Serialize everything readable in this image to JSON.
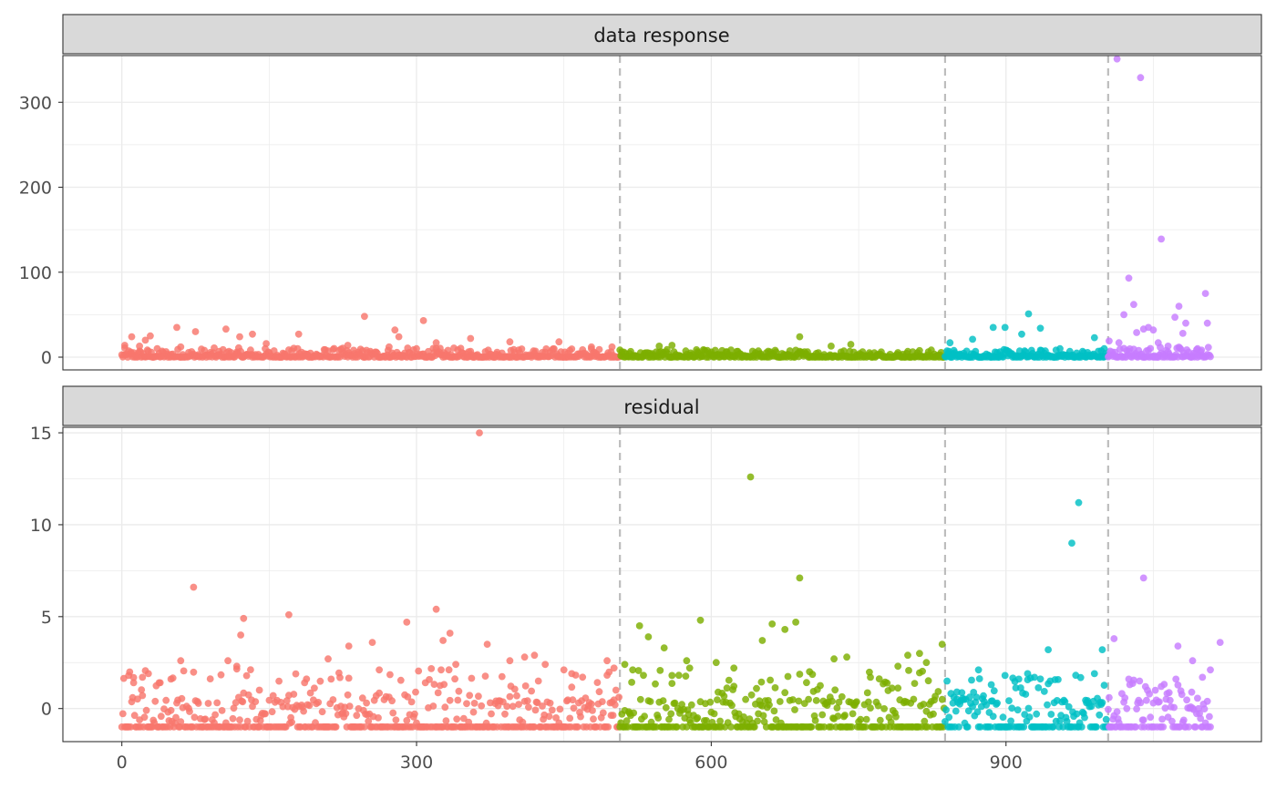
{
  "chart_data": {
    "type": "scatter",
    "facet_layout": "stacked-vertical",
    "colors": {
      "group1": "#F8766D",
      "group2": "#7CAE00",
      "group3": "#00BFC4",
      "group4": "#C77CFF",
      "boundary": "#bdbdbd",
      "strip_fill": "#d9d9d9",
      "panel_border": "#333333",
      "grid": "#ebebeb"
    },
    "grid": true,
    "legend": "none",
    "group_boundaries": [
      507,
      838,
      1004
    ],
    "x_range": [
      -60,
      1160
    ],
    "x_ticks": [
      0,
      300,
      600,
      900
    ],
    "x_tick_labels": [
      "0",
      "300",
      "600",
      "900"
    ],
    "panels": [
      {
        "strip_label": "data response",
        "y_range": [
          -15,
          355
        ],
        "y_ticks": [
          0,
          100,
          200,
          300
        ],
        "y_tick_labels": [
          "0",
          "100",
          "200",
          "300"
        ],
        "generated_baseline": {
          "model": "skewed-counts",
          "max_by_group": [
            11,
            9,
            9,
            13
          ]
        },
        "outliers": [
          [
            3,
            14
          ],
          [
            10,
            24
          ],
          [
            18,
            13
          ],
          [
            24,
            20
          ],
          [
            29,
            25
          ],
          [
            56,
            35
          ],
          [
            60,
            12
          ],
          [
            75,
            30
          ],
          [
            106,
            33
          ],
          [
            120,
            24
          ],
          [
            133,
            27
          ],
          [
            147,
            16
          ],
          [
            180,
            27
          ],
          [
            230,
            14
          ],
          [
            247,
            48
          ],
          [
            272,
            12
          ],
          [
            278,
            32
          ],
          [
            282,
            24
          ],
          [
            307,
            43
          ],
          [
            320,
            17
          ],
          [
            355,
            22
          ],
          [
            395,
            18
          ],
          [
            445,
            18
          ],
          [
            478,
            12
          ],
          [
            499,
            12
          ],
          [
            547,
            13
          ],
          [
            560,
            14
          ],
          [
            690,
            24
          ],
          [
            722,
            13
          ],
          [
            742,
            15
          ],
          [
            843,
            17
          ],
          [
            866,
            21
          ],
          [
            887,
            35
          ],
          [
            899,
            35
          ],
          [
            916,
            27
          ],
          [
            923,
            51
          ],
          [
            935,
            34
          ],
          [
            955,
            10
          ],
          [
            990,
            23
          ],
          [
            1000,
            10
          ],
          [
            1005,
            19
          ],
          [
            1013,
            351
          ],
          [
            1015,
            17
          ],
          [
            1020,
            50
          ],
          [
            1025,
            93
          ],
          [
            1030,
            62
          ],
          [
            1033,
            29
          ],
          [
            1037,
            329
          ],
          [
            1040,
            33
          ],
          [
            1045,
            35
          ],
          [
            1050,
            32
          ],
          [
            1055,
            17
          ],
          [
            1058,
            139
          ],
          [
            1065,
            13
          ],
          [
            1072,
            47
          ],
          [
            1076,
            60
          ],
          [
            1080,
            28
          ],
          [
            1083,
            40
          ],
          [
            1095,
            10
          ],
          [
            1103,
            75
          ],
          [
            1105,
            40
          ]
        ]
      },
      {
        "strip_label": "residual",
        "y_range": [
          -1.8,
          15.3
        ],
        "y_ticks": [
          0,
          5,
          10,
          15
        ],
        "y_tick_labels": [
          "0",
          "5",
          "10",
          "15"
        ],
        "generated_baseline": {
          "model": "residual-spread",
          "floor": -1,
          "max_by_group": [
            1.9,
            1.8,
            1.6,
            1.3
          ]
        },
        "outliers": [
          [
            7,
            1.8
          ],
          [
            12,
            1.4
          ],
          [
            21,
            1.7
          ],
          [
            27,
            1.9
          ],
          [
            38,
            1.4
          ],
          [
            50,
            1.6
          ],
          [
            60,
            2.6
          ],
          [
            73,
            6.6
          ],
          [
            108,
            2.6
          ],
          [
            117,
            2.3
          ],
          [
            121,
            4.0
          ],
          [
            124,
            4.9
          ],
          [
            140,
            1.0
          ],
          [
            170,
            5.1
          ],
          [
            186,
            1.4
          ],
          [
            210,
            2.7
          ],
          [
            231,
            3.4
          ],
          [
            255,
            3.6
          ],
          [
            262,
            2.1
          ],
          [
            290,
            4.7
          ],
          [
            320,
            5.4
          ],
          [
            325,
            2.1
          ],
          [
            327,
            3.7
          ],
          [
            334,
            4.1
          ],
          [
            340,
            2.4
          ],
          [
            364,
            15.0
          ],
          [
            372,
            3.5
          ],
          [
            395,
            2.6
          ],
          [
            410,
            2.8
          ],
          [
            420,
            2.9
          ],
          [
            431,
            2.4
          ],
          [
            450,
            2.1
          ],
          [
            458,
            1.9
          ],
          [
            494,
            2.6
          ],
          [
            501,
            2.2
          ],
          [
            512,
            2.4
          ],
          [
            520,
            2.1
          ],
          [
            527,
            4.5
          ],
          [
            536,
            3.9
          ],
          [
            552,
            3.3
          ],
          [
            560,
            1.8
          ],
          [
            575,
            2.6
          ],
          [
            578,
            2.2
          ],
          [
            589,
            4.8
          ],
          [
            605,
            2.5
          ],
          [
            623,
            2.2
          ],
          [
            640,
            12.6
          ],
          [
            652,
            3.7
          ],
          [
            662,
            4.6
          ],
          [
            675,
            4.3
          ],
          [
            686,
            4.7
          ],
          [
            690,
            7.1
          ],
          [
            700,
            2.0
          ],
          [
            725,
            2.7
          ],
          [
            738,
            2.8
          ],
          [
            762,
            1.7
          ],
          [
            790,
            2.3
          ],
          [
            800,
            2.9
          ],
          [
            812,
            3.0
          ],
          [
            819,
            2.5
          ],
          [
            835,
            3.5
          ],
          [
            850,
            0.9
          ],
          [
            872,
            2.1
          ],
          [
            885,
            1.3
          ],
          [
            899,
            1.8
          ],
          [
            913,
            1.6
          ],
          [
            922,
            1.9
          ],
          [
            929,
            1.7
          ],
          [
            943,
            3.2
          ],
          [
            967,
            9.0
          ],
          [
            974,
            11.2
          ],
          [
            990,
            1.9
          ],
          [
            998,
            3.2
          ],
          [
            1005,
            0.6
          ],
          [
            1010,
            3.8
          ],
          [
            1025,
            1.6
          ],
          [
            1040,
            7.1
          ],
          [
            1058,
            1.2
          ],
          [
            1075,
            3.4
          ],
          [
            1090,
            2.6
          ],
          [
            1100,
            1.7
          ],
          [
            1108,
            2.1
          ],
          [
            1118,
            3.6
          ]
        ]
      }
    ]
  }
}
